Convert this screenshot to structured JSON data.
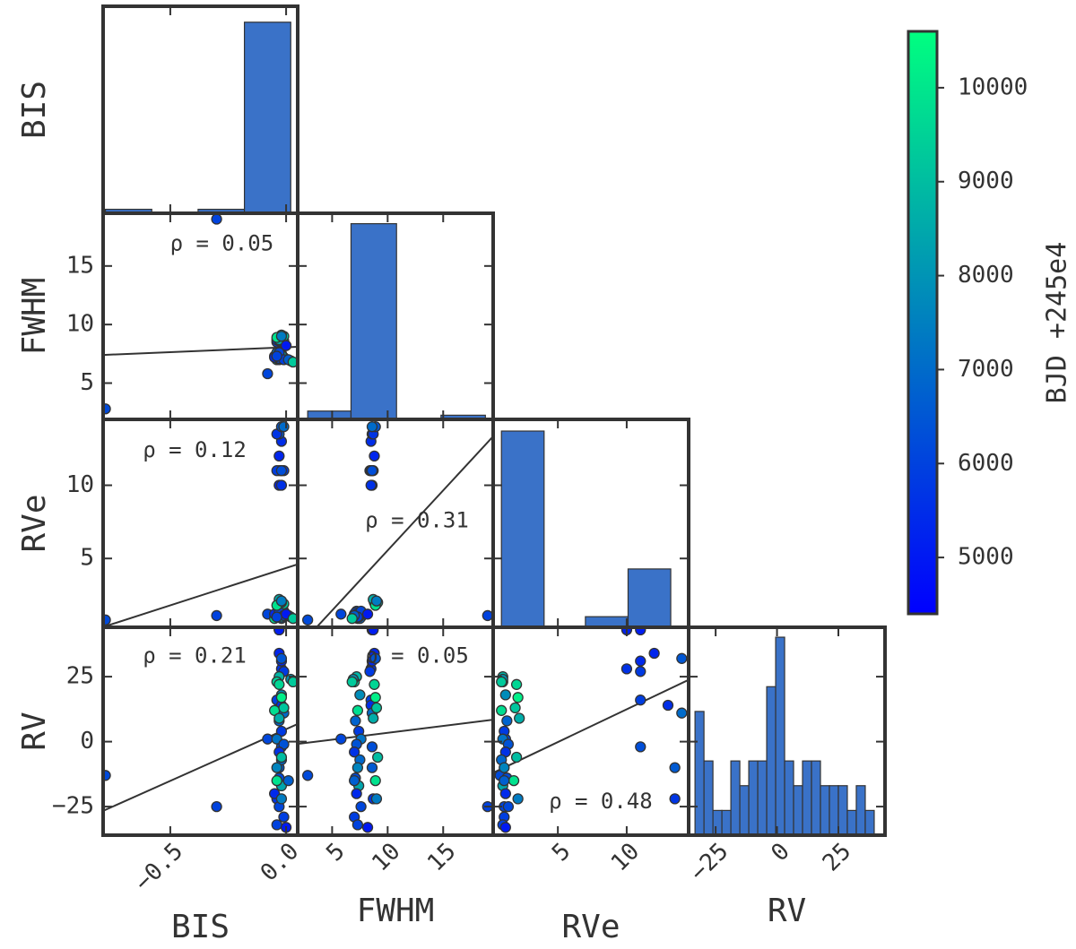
{
  "chart_data": {
    "type": "scatter_matrix",
    "variables": [
      {
        "name": "BIS",
        "lim": [
          -0.79,
          0.05
        ],
        "ticks": [
          {
            "value": -0.5,
            "label": "−0.5"
          },
          {
            "value": 0,
            "label": "0.0"
          }
        ],
        "values": [
          -0.78,
          -0.3,
          -0.08,
          -0.03,
          -0.02,
          -0.03,
          -0.02,
          -0.01,
          -0.04,
          -0.02,
          -0.03,
          -0.02,
          -0.03,
          -0.04,
          -0.02,
          -0.01,
          -0.03,
          -0.04,
          -0.02,
          -0.05,
          -0.03,
          -0.02,
          -0.04,
          -0.01,
          -0.03,
          -0.02,
          -0.04,
          -0.03,
          -0.02,
          -0.05,
          -0.03,
          -0.01,
          -0.04,
          -0.03,
          -0.02,
          -0.01,
          -0.03,
          -0.02,
          -0.04,
          -0.02,
          0.02,
          0.01,
          0,
          0.03
        ]
      },
      {
        "name": "FWHM",
        "lim": [
          1.9,
          19.5
        ],
        "ticks": [
          5,
          10,
          15
        ],
        "values": [
          2.8,
          19,
          5.8,
          8.6,
          8.5,
          8.7,
          8.6,
          8.4,
          8.5,
          8.6,
          8.8,
          8.5,
          8.6,
          8.7,
          8.9,
          8.6,
          7.2,
          7,
          7.5,
          7.3,
          7.1,
          7.4,
          7.6,
          7.2,
          7,
          7.5,
          7.3,
          7.1,
          7.4,
          7.2,
          7.6,
          7,
          7.3,
          8.8,
          8.9,
          9,
          8.7,
          9.1,
          8.9,
          9,
          6.9,
          7,
          8.2,
          6.8
        ]
      },
      {
        "name": "RVe",
        "lim": [
          0.3,
          14.5
        ],
        "ticks": [
          5,
          10
        ],
        "values": [
          0.8,
          1.1,
          1.2,
          10,
          10,
          11,
          11,
          11,
          11,
          11,
          12,
          13,
          13.5,
          13.5,
          14,
          14,
          1,
          1,
          1.2,
          0.9,
          1.3,
          1.1,
          1,
          1.4,
          1.2,
          0.9,
          1.1,
          1.3,
          1,
          1.2,
          1.4,
          1.1,
          1,
          2,
          2.1,
          1.9,
          2.2,
          2,
          1.8,
          2.1,
          1,
          1.1,
          1.2,
          0.9
        ]
      },
      {
        "name": "RV",
        "lim": [
          -36,
          44
        ],
        "ticks": [
          {
            "value": -25,
            "label": "−25"
          },
          0,
          25
        ],
        "values": [
          -13,
          -25,
          1,
          43,
          28,
          43,
          31,
          27,
          16,
          -2,
          34,
          14,
          -10,
          -22,
          32,
          11,
          25,
          23,
          18,
          12,
          8,
          4,
          1,
          -1,
          -4,
          -7,
          -10,
          -14,
          -17,
          -20,
          -25,
          -29,
          -32,
          22,
          17,
          13,
          9,
          -6,
          -15,
          -22,
          24,
          -15,
          -33,
          23
        ]
      }
    ],
    "color": {
      "label": "BJD +245e4",
      "lim": [
        4400,
        10600
      ],
      "ticks": [
        5000,
        6000,
        7000,
        8000,
        9000,
        10000
      ],
      "colormap": [
        "#0000ff",
        "#00ff80"
      ],
      "values": [
        6200,
        6000,
        6100,
        5200,
        5600,
        5100,
        5400,
        5800,
        5900,
        6300,
        5300,
        5500,
        6600,
        5700,
        6500,
        7000,
        8800,
        9400,
        7800,
        9800,
        6800,
        5800,
        7200,
        6400,
        5600,
        6900,
        7600,
        6200,
        8400,
        5400,
        6100,
        5900,
        6000,
        9600,
        10200,
        9200,
        8600,
        9000,
        9900,
        7400,
        8000,
        6700,
        5000,
        9300
      ]
    },
    "diagonal": [
      {
        "color": "#3a72c8",
        "ylim": [
          0,
          52
        ],
        "bins": [
          -0.78,
          -0.58,
          -0.38,
          -0.18,
          0.02
        ],
        "counts": [
          1,
          0,
          1,
          48
        ]
      },
      {
        "color": "#3a72c8",
        "ylim": [
          0,
          49.5
        ],
        "bins": [
          2.8,
          6.7,
          10.8,
          14.8,
          18.8
        ],
        "counts": [
          2,
          47,
          0,
          1
        ]
      },
      {
        "color": "#3a72c8",
        "ylim": [
          0,
          39.2
        ],
        "bins": [
          0.9,
          4,
          7,
          10.1,
          13.2
        ],
        "counts": [
          37,
          0,
          2,
          11
        ]
      },
      {
        "color": "#3a72c8",
        "ylim": [
          0,
          8.4
        ],
        "bins": [
          -33.4,
          -29.75,
          -26.1,
          -22.45,
          -18.8,
          -15.15,
          -11.5,
          -7.85,
          -4.2,
          -0.55,
          3.1,
          6.75,
          10.4,
          14.05,
          17.7,
          21.35,
          25,
          28.65,
          32.3,
          35.95,
          39.6
        ],
        "counts": [
          5,
          3,
          1,
          1,
          3,
          2,
          3,
          3,
          6,
          8,
          3,
          2,
          3,
          3,
          2,
          2,
          2,
          1,
          2,
          1
        ]
      }
    ],
    "pairs": [
      {
        "annotation": "ρ = 0.05",
        "fit": {
          "slope": 0.83,
          "intercept": 8.06
        }
      },
      {
        "annotation": "ρ = 0.12",
        "fit": {
          "slope": 5.1,
          "intercept": 4.35
        }
      },
      {
        "annotation": "ρ = 0.31",
        "fit": {
          "slope": 0.82,
          "intercept": -2.65
        }
      },
      {
        "annotation": "ρ = 0.21",
        "fit": {
          "slope": 39.8,
          "intercept": 4.8
        }
      },
      {
        "annotation": "ρ = 0.05",
        "fit": {
          "slope": 0.53,
          "intercept": -1.9
        }
      },
      {
        "annotation": "ρ = 0.48",
        "fit": {
          "slope": 2.52,
          "intercept": -12.76
        }
      }
    ]
  }
}
